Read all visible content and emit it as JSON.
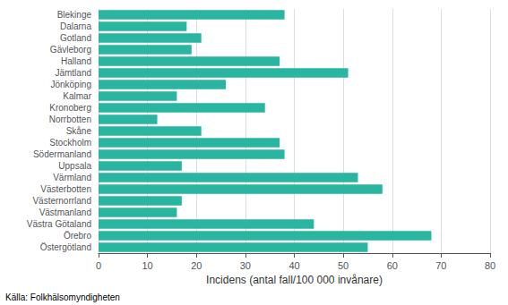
{
  "chart_data": {
    "type": "bar",
    "orientation": "horizontal",
    "categories": [
      "Östergötland",
      "Örebro",
      "Västra Götaland",
      "Västmanland",
      "Västernorrland",
      "Västerbotten",
      "Värmland",
      "Uppsala",
      "Södermanland",
      "Stockholm",
      "Skåne",
      "Norrbotten",
      "Kronoberg",
      "Kalmar",
      "Jönköping",
      "Jämtland",
      "Halland",
      "Gävleborg",
      "Gotland",
      "Dalarna",
      "Blekinge"
    ],
    "values": [
      55,
      68,
      44,
      16,
      17,
      58,
      53,
      17,
      38,
      37,
      21,
      12,
      34,
      16,
      26,
      51,
      37,
      19,
      21,
      18,
      38
    ],
    "color": "#2ab5a0",
    "xlabel": "Incidens (antal fall/100 000 invånare)",
    "xlim": [
      0,
      80
    ],
    "xticks": [
      0,
      10,
      20,
      30,
      40,
      50,
      60,
      70,
      80
    ],
    "grid": true,
    "annotation": "Källa: Folkhälsomyndigheten"
  }
}
